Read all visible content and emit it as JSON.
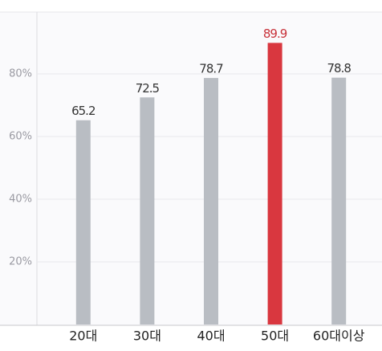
{
  "chart_data": {
    "type": "bar",
    "categories": [
      "20대",
      "30대",
      "40대",
      "50대",
      "60대이상"
    ],
    "values": [
      65.2,
      72.5,
      78.7,
      89.9,
      78.8
    ],
    "colors": [
      "#b9bdc3",
      "#b9bdc3",
      "#b9bdc3",
      "#d9373f",
      "#b9bdc3"
    ],
    "label_colors": [
      "#333333",
      "#333333",
      "#333333",
      "#c8323a",
      "#333333"
    ],
    "ylim": [
      0,
      100
    ],
    "yticks": [
      {
        "value": 20,
        "label": "20%"
      },
      {
        "value": 40,
        "label": "40%"
      },
      {
        "value": 60,
        "label": "60%"
      },
      {
        "value": 80,
        "label": "80%"
      }
    ],
    "grid": true
  }
}
